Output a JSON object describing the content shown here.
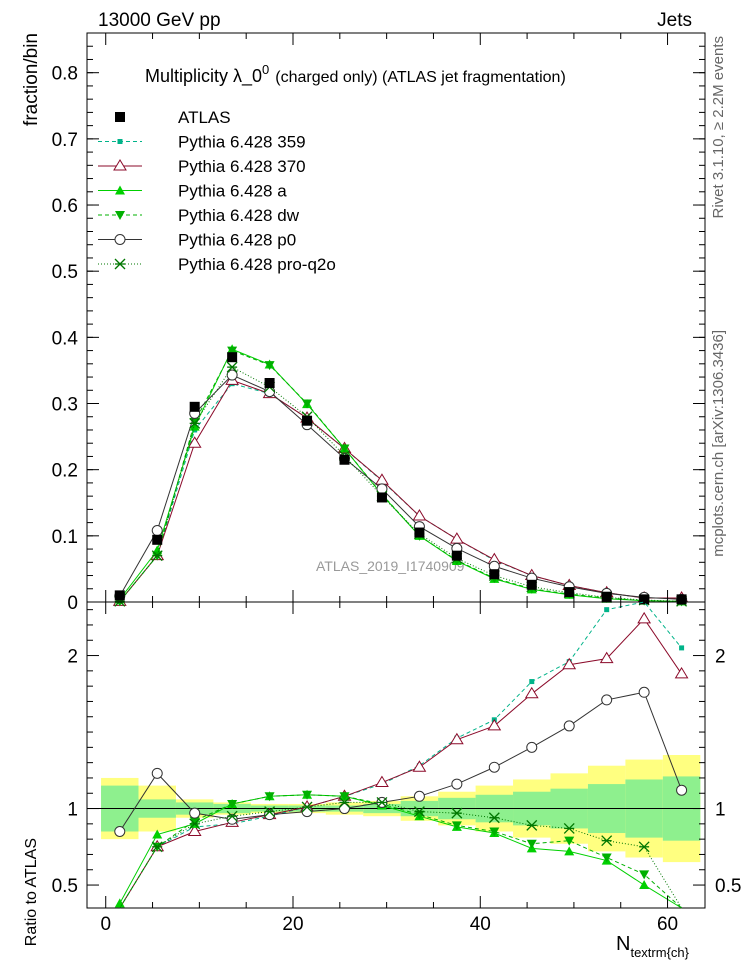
{
  "header": {
    "left": "13000 GeV pp",
    "right": "Jets",
    "side_top": "Rivet 3.1.10, ≥ 2.2M events",
    "side_bottom": "mcplots.cern.ch [arXiv:1306.3436]"
  },
  "chart_data": {
    "type": "line",
    "title": "Multiplicity  λ_0⁰ (charged only) (ATLAS jet fragmentation)",
    "title_main": "Multiplicity  λ_0",
    "title_sup": "0",
    "title_rest": "(charged only) (ATLAS jet fragmentation)",
    "watermark": "ATLAS_2019_I1740909",
    "xlabel_base": "N",
    "xlabel_sub": "textrm{ch}",
    "ylabel_top": "fraction/bin",
    "ylabel_bottom": "Ratio to ATLAS",
    "xlim": [
      -2,
      64
    ],
    "ylim_top": [
      0,
      0.86
    ],
    "ylim_bottom": [
      0.35,
      2.35
    ],
    "x_ticks": [
      0,
      20,
      40,
      60
    ],
    "y_ticks_top": [
      0,
      0.1,
      0.2,
      0.3,
      0.4,
      0.5,
      0.6,
      0.7,
      0.8
    ],
    "y_tick_labels_top": [
      "0",
      "0.1",
      "0.2",
      "0.3",
      "0.4",
      "0.5",
      "0.6",
      "0.7",
      "0.8"
    ],
    "y_ticks_bottom": [
      0.5,
      1,
      2
    ],
    "y_tick_labels_bottom": [
      "0.5",
      "1",
      "2"
    ],
    "x": [
      1.5,
      5.5,
      9.5,
      13.5,
      17.5,
      21.5,
      25.5,
      29.5,
      33.5,
      37.5,
      41.5,
      45.5,
      49.5,
      53.5,
      57.5,
      61.5
    ],
    "data": {
      "name": "ATLAS",
      "values": [
        0.01,
        0.094,
        0.295,
        0.37,
        0.331,
        0.274,
        0.215,
        0.158,
        0.105,
        0.07,
        0.042,
        0.026,
        0.015,
        0.008,
        0.004,
        0.004
      ]
    },
    "band_inner": [
      0.15,
      0.06,
      0.04,
      0.03,
      0.02,
      0.02,
      0.02,
      0.03,
      0.05,
      0.07,
      0.09,
      0.11,
      0.13,
      0.16,
      0.19,
      0.21
    ],
    "band_outer": [
      0.2,
      0.15,
      0.06,
      0.04,
      0.03,
      0.03,
      0.04,
      0.05,
      0.08,
      0.11,
      0.15,
      0.19,
      0.23,
      0.28,
      0.32,
      0.35
    ],
    "series": [
      {
        "name": "Pythia 6.428 359",
        "color": "#00b389",
        "dash": "4,3",
        "marker": "square-filled",
        "values": [
          0.001,
          0.07,
          0.26,
          0.33,
          0.315,
          0.278,
          0.232,
          0.183,
          0.13,
          0.095,
          0.063,
          0.04,
          0.025,
          0.014,
          0.006,
          0.006
        ],
        "ratio": [
          0.1,
          0.75,
          0.88,
          0.9,
          0.95,
          1.01,
          1.08,
          1.16,
          1.28,
          1.46,
          1.58,
          1.83,
          1.96,
          2.3,
          2.4,
          2.05
        ]
      },
      {
        "name": "Pythia 6.428 370",
        "color": "#8b0a2a",
        "dash": "",
        "marker": "triangle-open",
        "values": [
          0.001,
          0.07,
          0.24,
          0.335,
          0.315,
          0.278,
          0.232,
          0.184,
          0.13,
          0.095,
          0.064,
          0.04,
          0.025,
          0.014,
          0.006,
          0.006
        ],
        "ratio": [
          0.1,
          0.75,
          0.85,
          0.91,
          0.96,
          1.01,
          1.08,
          1.17,
          1.27,
          1.45,
          1.54,
          1.75,
          1.94,
          1.98,
          2.24,
          1.88
        ]
      },
      {
        "name": "Pythia 6.428 a",
        "color": "#00d000",
        "dash": "",
        "marker": "triangle-filled",
        "values": [
          0.004,
          0.078,
          0.265,
          0.382,
          0.359,
          0.299,
          0.232,
          0.162,
          0.1,
          0.062,
          0.035,
          0.019,
          0.011,
          0.005,
          0.002,
          0.001
        ],
        "ratio": [
          0.38,
          0.83,
          0.9,
          1.03,
          1.08,
          1.09,
          1.08,
          1.02,
          0.95,
          0.88,
          0.84,
          0.74,
          0.72,
          0.66,
          0.5,
          0.2
        ]
      },
      {
        "name": "Pythia 6.428 dw",
        "color": "#00b000",
        "dash": "4,3",
        "marker": "triangle-down-filled",
        "values": [
          0.001,
          0.07,
          0.272,
          0.38,
          0.358,
          0.3,
          0.232,
          0.163,
          0.1,
          0.063,
          0.036,
          0.02,
          0.012,
          0.006,
          0.002,
          0.001
        ],
        "ratio": [
          0.1,
          0.75,
          0.92,
          1.03,
          1.08,
          1.09,
          1.08,
          1.03,
          0.96,
          0.89,
          0.85,
          0.77,
          0.79,
          0.68,
          0.57,
          0.2
        ]
      },
      {
        "name": "Pythia 6.428 p0",
        "color": "#333333",
        "dash": "",
        "marker": "circle-open",
        "values": [
          0.009,
          0.108,
          0.285,
          0.343,
          0.318,
          0.268,
          0.217,
          0.171,
          0.114,
          0.081,
          0.054,
          0.036,
          0.023,
          0.013,
          0.007,
          0.004
        ],
        "ratio": [
          0.85,
          1.23,
          0.97,
          0.93,
          0.96,
          0.98,
          1.0,
          1.04,
          1.08,
          1.16,
          1.27,
          1.4,
          1.54,
          1.71,
          1.76,
          1.12
        ]
      },
      {
        "name": "Pythia 6.428 pro-q2o",
        "color": "#007700",
        "dash": "1,2",
        "marker": "star",
        "values": [
          0.001,
          0.07,
          0.27,
          0.355,
          0.325,
          0.28,
          0.221,
          0.16,
          0.103,
          0.066,
          0.04,
          0.023,
          0.014,
          0.007,
          0.003,
          0.001
        ],
        "ratio": [
          0.1,
          0.75,
          0.9,
          0.95,
          0.98,
          1.01,
          1.04,
          1.04,
          0.98,
          0.97,
          0.94,
          0.89,
          0.87,
          0.79,
          0.75,
          0.3
        ]
      }
    ],
    "legend_position": "top-left"
  }
}
